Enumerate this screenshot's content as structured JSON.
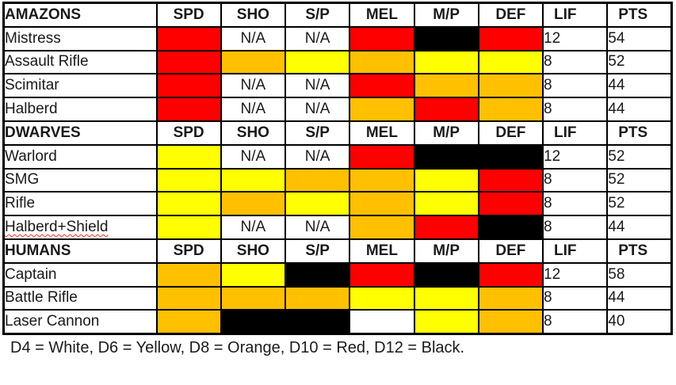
{
  "colors": {
    "white": "#ffffff",
    "yellow": "#ffff00",
    "orange": "#ffc000",
    "red": "#ff0000",
    "black": "#000000"
  },
  "table": {
    "columns": [
      "SPD",
      "SHO",
      "S/P",
      "MEL",
      "M/P",
      "DEF",
      "LIF",
      "PTS"
    ],
    "na_label": "N/A",
    "sections": [
      {
        "name": "AMAZONS",
        "rows": [
          {
            "name": "Mistress",
            "cells": [
              "red",
              "na",
              "na",
              "red",
              "black",
              "red"
            ],
            "lif": "12",
            "pts": "54"
          },
          {
            "name": "Assault Rifle",
            "cells": [
              "red",
              "orange",
              "yellow",
              "orange",
              "yellow",
              "yellow"
            ],
            "lif": "8",
            "pts": "52"
          },
          {
            "name": "Scimitar",
            "cells": [
              "red",
              "na",
              "na",
              "red",
              "orange",
              "orange"
            ],
            "lif": "8",
            "pts": "44"
          },
          {
            "name": "Halberd",
            "cells": [
              "red",
              "na",
              "na",
              "orange",
              "red",
              "orange"
            ],
            "lif": "8",
            "pts": "44"
          }
        ]
      },
      {
        "name": "DWARVES",
        "rows": [
          {
            "name": "Warlord",
            "cells": [
              "yellow",
              "na",
              "na",
              "red",
              "black",
              "black"
            ],
            "lif": "12",
            "pts": "52"
          },
          {
            "name": "SMG",
            "cells": [
              "yellow",
              "yellow",
              "orange",
              "orange",
              "yellow",
              "red"
            ],
            "lif": "8",
            "pts": "52"
          },
          {
            "name": "Rifle",
            "cells": [
              "yellow",
              "orange",
              "yellow",
              "orange",
              "yellow",
              "red"
            ],
            "lif": "8",
            "pts": "52"
          },
          {
            "name": "Halberd+Shield",
            "cells": [
              "yellow",
              "na",
              "na",
              "orange",
              "red",
              "black"
            ],
            "lif": "8",
            "pts": "44",
            "squiggle": true
          }
        ]
      },
      {
        "name": "HUMANS",
        "rows": [
          {
            "name": "Captain",
            "cells": [
              "orange",
              "yellow",
              "black",
              "red",
              "black",
              "red"
            ],
            "lif": "12",
            "pts": "58"
          },
          {
            "name": "Battle Rifle",
            "cells": [
              "orange",
              "orange",
              "orange",
              "yellow",
              "yellow",
              "orange"
            ],
            "lif": "8",
            "pts": "44"
          },
          {
            "name": "Laser Cannon",
            "cells": [
              "orange",
              "black",
              "black",
              "white",
              "yellow",
              "orange"
            ],
            "lif": "8",
            "pts": "40"
          }
        ]
      }
    ]
  },
  "legend": "D4 = White, D6 = Yellow, D8 = Orange, D10 = Red, D12 = Black."
}
